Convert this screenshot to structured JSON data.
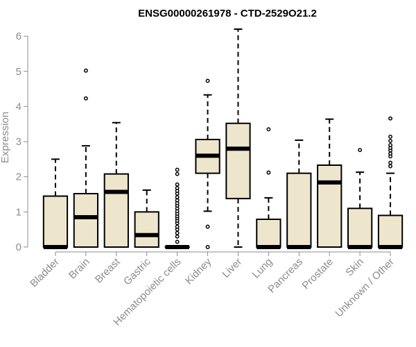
{
  "chart_data": {
    "type": "boxplot",
    "title": "ENSG00000261978 - CTD-2529O21.2",
    "xlabel": "",
    "ylabel": "Expression",
    "ylim": [
      0,
      6.2
    ],
    "yticks": [
      0,
      1,
      2,
      3,
      4,
      5,
      6
    ],
    "grid": false,
    "legend": "none",
    "colors": {
      "box_fill": "#ede6cd",
      "stroke": "#000000",
      "axis_text": "#8c8c8c",
      "title": "#000000"
    },
    "categories": [
      "Bladder",
      "Brain",
      "Breast",
      "Gastric",
      "Hematopoietic cells",
      "Kidney",
      "Liver",
      "Lung",
      "Pancreas",
      "Prostate",
      "Skin",
      "Unknown / Other"
    ],
    "boxes": [
      {
        "category": "Bladder",
        "min": 0,
        "q1": 0,
        "median": 0,
        "q3": 1.45,
        "max": 2.5,
        "outliers": []
      },
      {
        "category": "Brain",
        "min": 0,
        "q1": 0,
        "median": 0.85,
        "q3": 1.52,
        "max": 2.88,
        "outliers": [
          4.23,
          5.02
        ]
      },
      {
        "category": "Breast",
        "min": 0,
        "q1": 0,
        "median": 1.57,
        "q3": 2.08,
        "max": 3.54,
        "outliers": []
      },
      {
        "category": "Gastric",
        "min": 0,
        "q1": 0,
        "median": 0.34,
        "q3": 1.0,
        "max": 1.62,
        "outliers": []
      },
      {
        "category": "Hematopoietic cells",
        "min": 0,
        "q1": 0,
        "median": 0,
        "q3": 0,
        "max": 0,
        "outliers": [
          0.15,
          0.3,
          0.4,
          0.5,
          0.58,
          0.68,
          0.75,
          0.82,
          0.88,
          0.95,
          1.02,
          1.1,
          1.18,
          1.25,
          1.33,
          1.42,
          1.52,
          1.6,
          1.68,
          1.78,
          2.08,
          2.2
        ]
      },
      {
        "category": "Kidney",
        "min": 1.02,
        "q1": 2.1,
        "median": 2.6,
        "q3": 3.06,
        "max": 4.33,
        "outliers": [
          0,
          0.58,
          4.73
        ]
      },
      {
        "category": "Liver",
        "min": 0,
        "q1": 1.38,
        "median": 2.8,
        "q3": 3.52,
        "max": 6.2,
        "outliers": []
      },
      {
        "category": "Lung",
        "min": 0,
        "q1": 0,
        "median": 0,
        "q3": 0.79,
        "max": 1.4,
        "outliers": [
          2.12,
          3.35
        ]
      },
      {
        "category": "Pancreas",
        "min": 0,
        "q1": 0,
        "median": 0,
        "q3": 2.1,
        "max": 3.04,
        "outliers": []
      },
      {
        "category": "Prostate",
        "min": 0,
        "q1": 0,
        "median": 1.84,
        "q3": 2.33,
        "max": 3.64,
        "outliers": []
      },
      {
        "category": "Skin",
        "min": 0,
        "q1": 0,
        "median": 0,
        "q3": 1.1,
        "max": 2.13,
        "outliers": [
          2.76
        ]
      },
      {
        "category": "Unknown / Other",
        "min": 0,
        "q1": 0,
        "median": 0,
        "q3": 0.9,
        "max": 2.1,
        "outliers": [
          2.3,
          2.4,
          2.58,
          2.66,
          2.75,
          2.82,
          2.9,
          3.02,
          3.14,
          3.66
        ]
      }
    ]
  }
}
